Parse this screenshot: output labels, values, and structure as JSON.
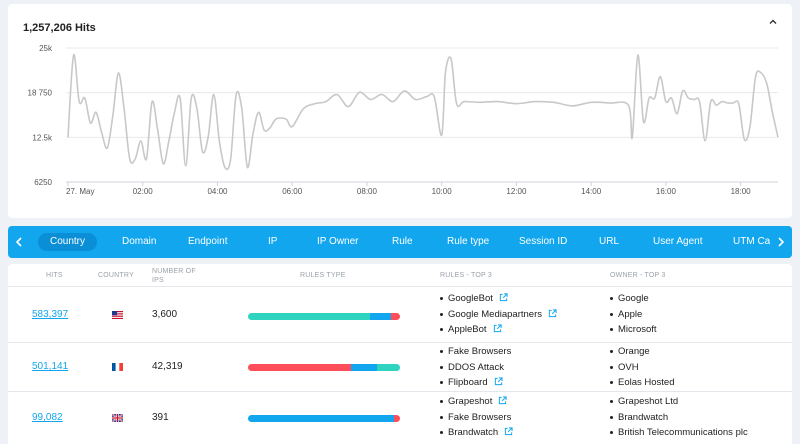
{
  "chart": {
    "title": "1,257,206 Hits",
    "collapse_icon": "chevron-up-icon",
    "y_ticks": [
      "25k",
      "18 750",
      "12.5k",
      "6250"
    ],
    "x_ticks": [
      "27. May",
      "02:00",
      "04:00",
      "06:00",
      "08:00",
      "10:00",
      "12:00",
      "14:00",
      "16:00",
      "18:00"
    ]
  },
  "chart_data": {
    "type": "line",
    "title": "1,257,206 Hits",
    "xlabel": "",
    "ylabel": "",
    "ylim": [
      6250,
      25000
    ],
    "x_range_hours": [
      0,
      19
    ],
    "grid": true,
    "legend": "none",
    "series_color": "#c8c8c8",
    "series": [
      {
        "name": "",
        "x": [
          0,
          0.15,
          0.3,
          0.45,
          0.6,
          0.75,
          0.9,
          1.05,
          1.2,
          1.35,
          1.5,
          1.65,
          1.8,
          1.95,
          2.1,
          2.25,
          2.4,
          2.55,
          2.7,
          2.85,
          3.0,
          3.15,
          3.3,
          3.45,
          3.6,
          3.75,
          3.9,
          4.05,
          4.2,
          4.35,
          4.5,
          4.65,
          4.8,
          4.95,
          5.1,
          5.25,
          5.4,
          5.55,
          5.7,
          5.85,
          6.0,
          6.3,
          6.6,
          6.9,
          7.2,
          7.5,
          7.8,
          8.1,
          8.4,
          8.7,
          9.0,
          9.3,
          9.6,
          9.8,
          10.0,
          10.1,
          10.25,
          10.4,
          10.6,
          11.0,
          11.5,
          12.0,
          12.5,
          13.0,
          13.5,
          14.0,
          14.5,
          15.0,
          15.1,
          15.25,
          15.4,
          15.55,
          15.7,
          15.85,
          16.0,
          16.15,
          16.3,
          16.45,
          16.6,
          16.75,
          16.9,
          17.05,
          17.2,
          17.35,
          17.5,
          17.65,
          17.8,
          17.95,
          18.1,
          18.25,
          18.4,
          18.55,
          18.7,
          18.85,
          19.0
        ],
        "values": [
          12500,
          24000,
          17500,
          18000,
          14500,
          16000,
          13200,
          11000,
          15500,
          21500,
          16500,
          9500,
          9500,
          12000,
          9500,
          17500,
          13500,
          8800,
          12000,
          16000,
          18000,
          8500,
          18000,
          16500,
          10500,
          12500,
          18500,
          12000,
          8300,
          9400,
          18500,
          16500,
          8300,
          13000,
          16000,
          13500,
          13800,
          15000,
          15200,
          15000,
          14000,
          16500,
          17200,
          17500,
          18500,
          16800,
          18800,
          17800,
          18500,
          17500,
          19000,
          17800,
          18200,
          18200,
          12800,
          21500,
          23500,
          17200,
          17500,
          17400,
          17500,
          17200,
          17500,
          17400,
          16900,
          17400,
          17300,
          17000,
          12500,
          24000,
          14700,
          18000,
          18000,
          21000,
          17500,
          18000,
          15800,
          19000,
          18000,
          17800,
          17500,
          12000,
          17500,
          17000,
          17500,
          17300,
          17300,
          17200,
          12200,
          14000,
          21000,
          21500,
          20000,
          16000,
          12500
        ]
      }
    ]
  },
  "tabs": {
    "prev_icon": "chevron-left-icon",
    "next_icon": "chevron-right-icon",
    "items": [
      {
        "label": "Country"
      },
      {
        "label": "Domain"
      },
      {
        "label": "Endpoint"
      },
      {
        "label": "IP"
      },
      {
        "label": "IP Owner"
      },
      {
        "label": "Rule"
      },
      {
        "label": "Rule type"
      },
      {
        "label": "Session ID"
      },
      {
        "label": "URL"
      },
      {
        "label": "User Agent"
      },
      {
        "label": "UTM Campaign"
      }
    ]
  },
  "table": {
    "headers": {
      "hits": "HITS",
      "country": "COUNTRY",
      "ips_line1": "NUMBER OF",
      "ips_line2": "IPS",
      "rules_type": "RULES TYPE",
      "rules_top": "RULES - TOP 3",
      "owner_top": "OWNER - TOP 3"
    },
    "colors": {
      "green": "#2fd4c0",
      "blue": "#12a6ee",
      "red": "#ff4d5a"
    },
    "rows": [
      {
        "hits": "583,397",
        "country_flag": "us-flag-icon",
        "ips": "3,600",
        "rules_type_fractions": {
          "green": 0.8,
          "blue": 0.14,
          "red": 0.06
        },
        "rules": [
          "GoogleBot",
          "Google Mediapartners",
          "AppleBot"
        ],
        "owners": [
          "Google",
          "Apple",
          "Microsoft"
        ]
      },
      {
        "hits": "501,141",
        "country_flag": "fr-flag-icon",
        "ips": "42,319",
        "rules_type_fractions": {
          "red": 0.68,
          "blue": 0.17,
          "green": 0.15
        },
        "rules": [
          "Fake Browsers",
          "DDOS Attack",
          "Flipboard"
        ],
        "owners": [
          "Orange",
          "OVH",
          "Eolas Hosted"
        ]
      },
      {
        "hits": "99,082",
        "country_flag": "gb-flag-icon",
        "ips": "391",
        "rules_type_fractions": {
          "blue": 0.96,
          "red": 0.04
        },
        "rules": [
          "Grapeshot",
          "Fake Browsers",
          "Brandwatch"
        ],
        "owners": [
          "Grapeshot Ltd",
          "Brandwatch",
          "British Telecommunications plc"
        ]
      }
    ]
  }
}
